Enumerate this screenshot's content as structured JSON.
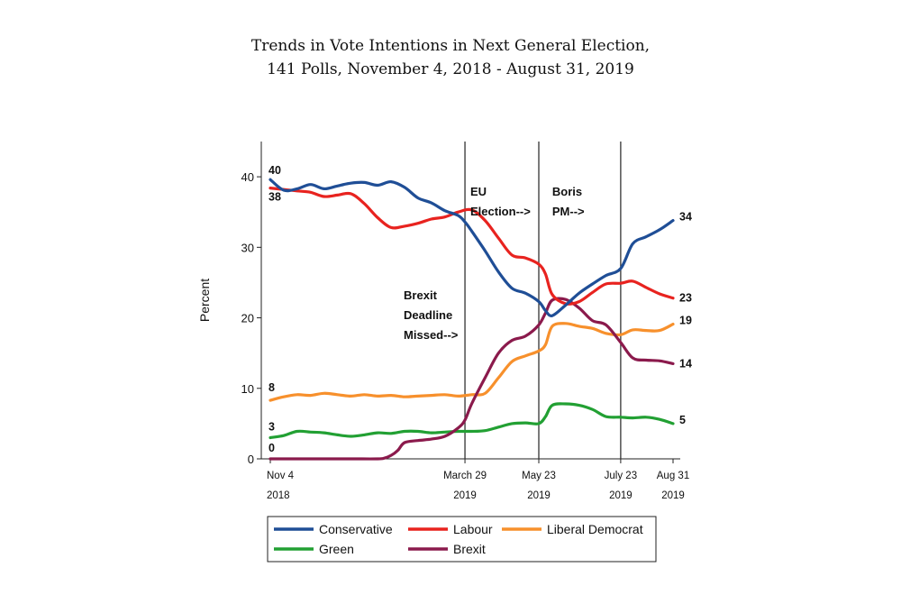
{
  "chart_data": {
    "type": "line",
    "title_line1": "Trends in Vote Intentions in Next General Election,",
    "title_line2": "141 Polls, November 4, 2018 - August 31, 2019",
    "ylabel": "Percent",
    "xlabel": "",
    "ylim": [
      0,
      45
    ],
    "yticks": [
      0,
      10,
      20,
      30,
      40
    ],
    "x_domain_days": [
      0,
      300
    ],
    "xticks": [
      {
        "day": 0,
        "line1": "Nov 4",
        "line2": "2018"
      },
      {
        "day": 145,
        "line1": "March 29",
        "line2": "2019"
      },
      {
        "day": 200,
        "line1": "May 23",
        "line2": "2019"
      },
      {
        "day": 261,
        "line1": "July 23",
        "line2": "2019"
      },
      {
        "day": 300,
        "line1": "Aug 31",
        "line2": "2019"
      }
    ],
    "events": [
      {
        "day": 145,
        "lines": [
          "Brexit",
          "Deadline",
          "Missed-->"
        ],
        "y": 22.6,
        "side": "left"
      },
      {
        "day": 200,
        "lines": [
          "EU",
          "Election-->"
        ],
        "y": 37.3,
        "side": "left"
      },
      {
        "day": 261,
        "lines": [
          "Boris",
          "PM-->"
        ],
        "y": 37.3,
        "side": "left"
      }
    ],
    "series": [
      {
        "name": "Conservative",
        "color": "#1f4e96",
        "start_label": "40",
        "end_label": "34",
        "points": [
          [
            0,
            39.6
          ],
          [
            10,
            38.1
          ],
          [
            20,
            38.3
          ],
          [
            30,
            38.9
          ],
          [
            40,
            38.3
          ],
          [
            50,
            38.7
          ],
          [
            60,
            39.1
          ],
          [
            70,
            39.2
          ],
          [
            80,
            38.8
          ],
          [
            90,
            39.3
          ],
          [
            100,
            38.5
          ],
          [
            110,
            37.0
          ],
          [
            120,
            36.3
          ],
          [
            130,
            35.2
          ],
          [
            140,
            34.5
          ],
          [
            145,
            33.6
          ],
          [
            150,
            32.3
          ],
          [
            160,
            29.5
          ],
          [
            170,
            26.5
          ],
          [
            180,
            24.2
          ],
          [
            190,
            23.5
          ],
          [
            200,
            22.3
          ],
          [
            205,
            21.0
          ],
          [
            210,
            20.3
          ],
          [
            220,
            21.8
          ],
          [
            230,
            23.5
          ],
          [
            240,
            24.8
          ],
          [
            250,
            26.0
          ],
          [
            261,
            27.0
          ],
          [
            270,
            30.5
          ],
          [
            280,
            31.5
          ],
          [
            290,
            32.5
          ],
          [
            300,
            33.8
          ]
        ]
      },
      {
        "name": "Labour",
        "color": "#e8231f",
        "start_label": "38",
        "end_label": "23",
        "points": [
          [
            0,
            38.4
          ],
          [
            10,
            38.2
          ],
          [
            20,
            38.0
          ],
          [
            30,
            37.8
          ],
          [
            40,
            37.2
          ],
          [
            50,
            37.4
          ],
          [
            60,
            37.6
          ],
          [
            70,
            36.2
          ],
          [
            80,
            34.2
          ],
          [
            90,
            32.8
          ],
          [
            100,
            33.0
          ],
          [
            110,
            33.4
          ],
          [
            120,
            34.0
          ],
          [
            130,
            34.3
          ],
          [
            140,
            35.0
          ],
          [
            150,
            35.3
          ],
          [
            160,
            33.8
          ],
          [
            170,
            31.3
          ],
          [
            180,
            28.9
          ],
          [
            190,
            28.5
          ],
          [
            200,
            27.6
          ],
          [
            205,
            26.2
          ],
          [
            210,
            23.3
          ],
          [
            220,
            22.0
          ],
          [
            230,
            22.3
          ],
          [
            240,
            23.6
          ],
          [
            250,
            24.8
          ],
          [
            261,
            24.9
          ],
          [
            270,
            25.2
          ],
          [
            280,
            24.3
          ],
          [
            290,
            23.4
          ],
          [
            300,
            22.8
          ]
        ]
      },
      {
        "name": "Liberal Democrat",
        "color": "#f7902c",
        "start_label": "8",
        "end_label": "19",
        "points": [
          [
            0,
            8.3
          ],
          [
            10,
            8.8
          ],
          [
            20,
            9.1
          ],
          [
            30,
            9.0
          ],
          [
            40,
            9.3
          ],
          [
            50,
            9.1
          ],
          [
            60,
            8.9
          ],
          [
            70,
            9.1
          ],
          [
            80,
            8.9
          ],
          [
            90,
            9.0
          ],
          [
            100,
            8.8
          ],
          [
            110,
            8.9
          ],
          [
            120,
            9.0
          ],
          [
            130,
            9.1
          ],
          [
            140,
            8.9
          ],
          [
            150,
            9.1
          ],
          [
            160,
            9.3
          ],
          [
            170,
            11.5
          ],
          [
            180,
            13.8
          ],
          [
            190,
            14.6
          ],
          [
            200,
            15.3
          ],
          [
            205,
            16.2
          ],
          [
            210,
            18.8
          ],
          [
            220,
            19.2
          ],
          [
            230,
            18.8
          ],
          [
            240,
            18.5
          ],
          [
            250,
            17.8
          ],
          [
            261,
            17.6
          ],
          [
            270,
            18.3
          ],
          [
            280,
            18.2
          ],
          [
            290,
            18.2
          ],
          [
            300,
            19.1
          ]
        ]
      },
      {
        "name": "Green",
        "color": "#22a033",
        "start_label": "3",
        "end_label": "5",
        "points": [
          [
            0,
            3.0
          ],
          [
            10,
            3.3
          ],
          [
            20,
            3.9
          ],
          [
            30,
            3.8
          ],
          [
            40,
            3.7
          ],
          [
            50,
            3.4
          ],
          [
            60,
            3.2
          ],
          [
            70,
            3.4
          ],
          [
            80,
            3.7
          ],
          [
            90,
            3.6
          ],
          [
            100,
            3.9
          ],
          [
            110,
            3.9
          ],
          [
            120,
            3.7
          ],
          [
            130,
            3.8
          ],
          [
            140,
            3.9
          ],
          [
            150,
            3.9
          ],
          [
            160,
            4.0
          ],
          [
            170,
            4.5
          ],
          [
            180,
            5.0
          ],
          [
            190,
            5.1
          ],
          [
            200,
            5.0
          ],
          [
            205,
            6.0
          ],
          [
            210,
            7.6
          ],
          [
            220,
            7.8
          ],
          [
            230,
            7.6
          ],
          [
            240,
            7.0
          ],
          [
            250,
            6.0
          ],
          [
            261,
            5.9
          ],
          [
            270,
            5.8
          ],
          [
            280,
            5.9
          ],
          [
            290,
            5.6
          ],
          [
            300,
            5.0
          ]
        ]
      },
      {
        "name": "Brexit",
        "color": "#8b1a4c",
        "start_label": "0",
        "end_label": "14",
        "points": [
          [
            0,
            0
          ],
          [
            30,
            0
          ],
          [
            60,
            0
          ],
          [
            80,
            0
          ],
          [
            85,
            0.1
          ],
          [
            90,
            0.5
          ],
          [
            95,
            1.2
          ],
          [
            100,
            2.3
          ],
          [
            110,
            2.6
          ],
          [
            120,
            2.8
          ],
          [
            130,
            3.2
          ],
          [
            140,
            4.4
          ],
          [
            145,
            5.5
          ],
          [
            150,
            7.8
          ],
          [
            160,
            11.5
          ],
          [
            170,
            15.0
          ],
          [
            180,
            16.8
          ],
          [
            190,
            17.4
          ],
          [
            200,
            19.0
          ],
          [
            205,
            20.7
          ],
          [
            210,
            22.5
          ],
          [
            220,
            22.6
          ],
          [
            230,
            21.4
          ],
          [
            240,
            19.6
          ],
          [
            250,
            19.0
          ],
          [
            261,
            16.5
          ],
          [
            270,
            14.3
          ],
          [
            280,
            14.0
          ],
          [
            290,
            13.9
          ],
          [
            300,
            13.5
          ]
        ]
      }
    ],
    "legend": {
      "placement": "bottom",
      "entries": [
        "Conservative",
        "Labour",
        "Liberal Democrat",
        "Green",
        "Brexit"
      ]
    }
  }
}
